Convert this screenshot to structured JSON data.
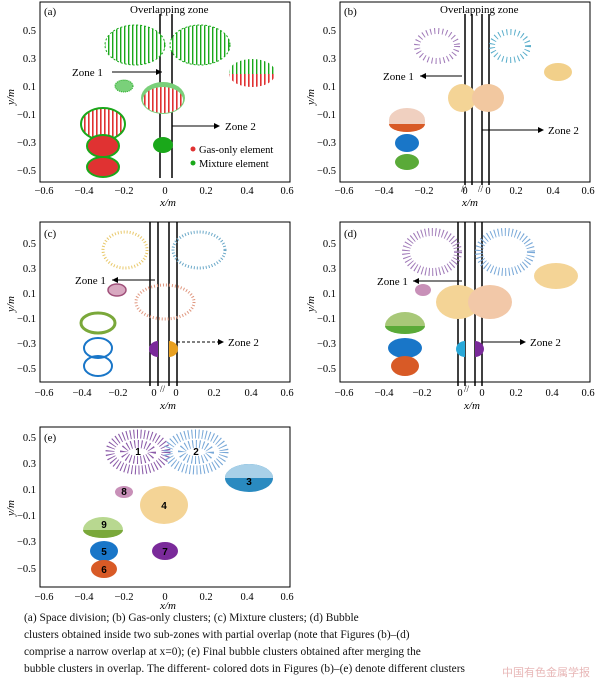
{
  "colors": {
    "gas": "#e03232",
    "mixture": "#1aa81a",
    "axis": "#000000",
    "panel_b": {
      "c1": "#a07ab8",
      "c2": "#5aaecb",
      "c3": "#e8b658",
      "c4": "#f0c078",
      "c5": "#1976c8",
      "c6": "#d85a26",
      "c7": "#5aaa38",
      "c8": "#d85a26"
    },
    "cluster": {
      "1": "#8a5aa8",
      "2": "#78a8d8",
      "3": "#2a8ac0",
      "4": "#f0c458",
      "5": "#1976c8",
      "6": "#d85a26",
      "7": "#7a2a9a",
      "8": "#a0507a",
      "9": "#7aa83a"
    }
  },
  "panels": [
    {
      "id": "a",
      "label": "(a)",
      "title": "Overlapping zone",
      "zone1": "Zone 1",
      "zone2": "Zone 2",
      "legend": [
        {
          "label": "Gas-only element",
          "color": "#e03232"
        },
        {
          "label": "Mixture element",
          "color": "#1aa81a"
        }
      ]
    },
    {
      "id": "b",
      "label": "(b)",
      "title": "Overlapping zone",
      "zone1": "Zone 1",
      "zone2": "Zone 2"
    },
    {
      "id": "c",
      "label": "(c)",
      "zone1": "Zone 1",
      "zone2": "Zone 2"
    },
    {
      "id": "d",
      "label": "(d)",
      "zone1": "Zone 1",
      "zone2": "Zone 2"
    },
    {
      "id": "e",
      "label": "(e)",
      "cluster_labels": [
        "1",
        "2",
        "3",
        "4",
        "5",
        "6",
        "7",
        "8",
        "9"
      ]
    }
  ],
  "axes": {
    "xlabel": "x/m",
    "ylabel": "y/m",
    "xticks": [
      "−0.6",
      "−0.4",
      "−0.2",
      "0",
      "0.2",
      "0.4",
      "0.6"
    ],
    "yticks": [
      "0.5",
      "0.3",
      "0.1",
      "−0.1",
      "−0.3",
      "−0.5"
    ],
    "break_mark": "//"
  },
  "caption": {
    "line1": "(a) Space division; (b) Gas-only clusters; (c) Mixture clusters; (d) Bubble",
    "line2": "clusters obtained inside two sub-zones with partial overlap (note that Figures (b)–(d)",
    "line3": "comprise a narrow overlap at x=0); (e) Final bubble clusters obtained after merging the",
    "line4": "bubble clusters in overlap. The different- colored dots in Figures (b)–(e) denote different clusters"
  },
  "watermark": "中国有色金属学报"
}
